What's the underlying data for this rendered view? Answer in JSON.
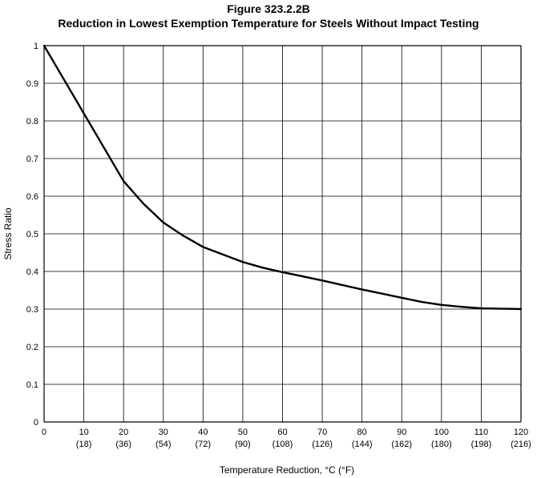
{
  "figure": {
    "number": "Figure 323.2.2B",
    "title": "Reduction in Lowest Exemption Temperature for Steels Without Impact Testing"
  },
  "chart_data": {
    "type": "line",
    "xlabel": "Temperature Reduction, °C (°F)",
    "ylabel": "Stress Ratio",
    "xlim": [
      0,
      120
    ],
    "ylim": [
      0,
      1
    ],
    "grid": true,
    "x_ticks": [
      {
        "value": 0,
        "label": "0",
        "sublabel": ""
      },
      {
        "value": 10,
        "label": "10",
        "sublabel": "(18)"
      },
      {
        "value": 20,
        "label": "20",
        "sublabel": "(36)"
      },
      {
        "value": 30,
        "label": "30",
        "sublabel": "(54)"
      },
      {
        "value": 40,
        "label": "40",
        "sublabel": "(72)"
      },
      {
        "value": 50,
        "label": "50",
        "sublabel": "(90)"
      },
      {
        "value": 60,
        "label": "60",
        "sublabel": "(108)"
      },
      {
        "value": 70,
        "label": "70",
        "sublabel": "(126)"
      },
      {
        "value": 80,
        "label": "80",
        "sublabel": "(144)"
      },
      {
        "value": 90,
        "label": "90",
        "sublabel": "(162)"
      },
      {
        "value": 100,
        "label": "100",
        "sublabel": "(180)"
      },
      {
        "value": 110,
        "label": "110",
        "sublabel": "(198)"
      },
      {
        "value": 120,
        "label": "120",
        "sublabel": "(216)"
      }
    ],
    "y_ticks": [
      {
        "value": 0,
        "label": "0"
      },
      {
        "value": 0.1,
        "label": "0.1"
      },
      {
        "value": 0.2,
        "label": "0.2"
      },
      {
        "value": 0.3,
        "label": "0.3"
      },
      {
        "value": 0.4,
        "label": "0.4"
      },
      {
        "value": 0.5,
        "label": "0.5"
      },
      {
        "value": 0.6,
        "label": "0.6"
      },
      {
        "value": 0.7,
        "label": "0.7"
      },
      {
        "value": 0.8,
        "label": "0.8"
      },
      {
        "value": 0.9,
        "label": "0.9"
      },
      {
        "value": 1,
        "label": "1"
      }
    ],
    "series": [
      {
        "color": "#000000",
        "x": [
          0,
          5,
          10,
          15,
          20,
          25,
          30,
          35,
          40,
          45,
          50,
          55,
          60,
          65,
          70,
          75,
          80,
          85,
          90,
          95,
          100,
          105,
          110,
          115,
          120
        ],
        "y": [
          1.0,
          0.91,
          0.82,
          0.73,
          0.64,
          0.58,
          0.53,
          0.495,
          0.465,
          0.445,
          0.425,
          0.41,
          0.398,
          0.387,
          0.376,
          0.364,
          0.352,
          0.341,
          0.33,
          0.319,
          0.311,
          0.306,
          0.302,
          0.301,
          0.3
        ]
      }
    ]
  }
}
